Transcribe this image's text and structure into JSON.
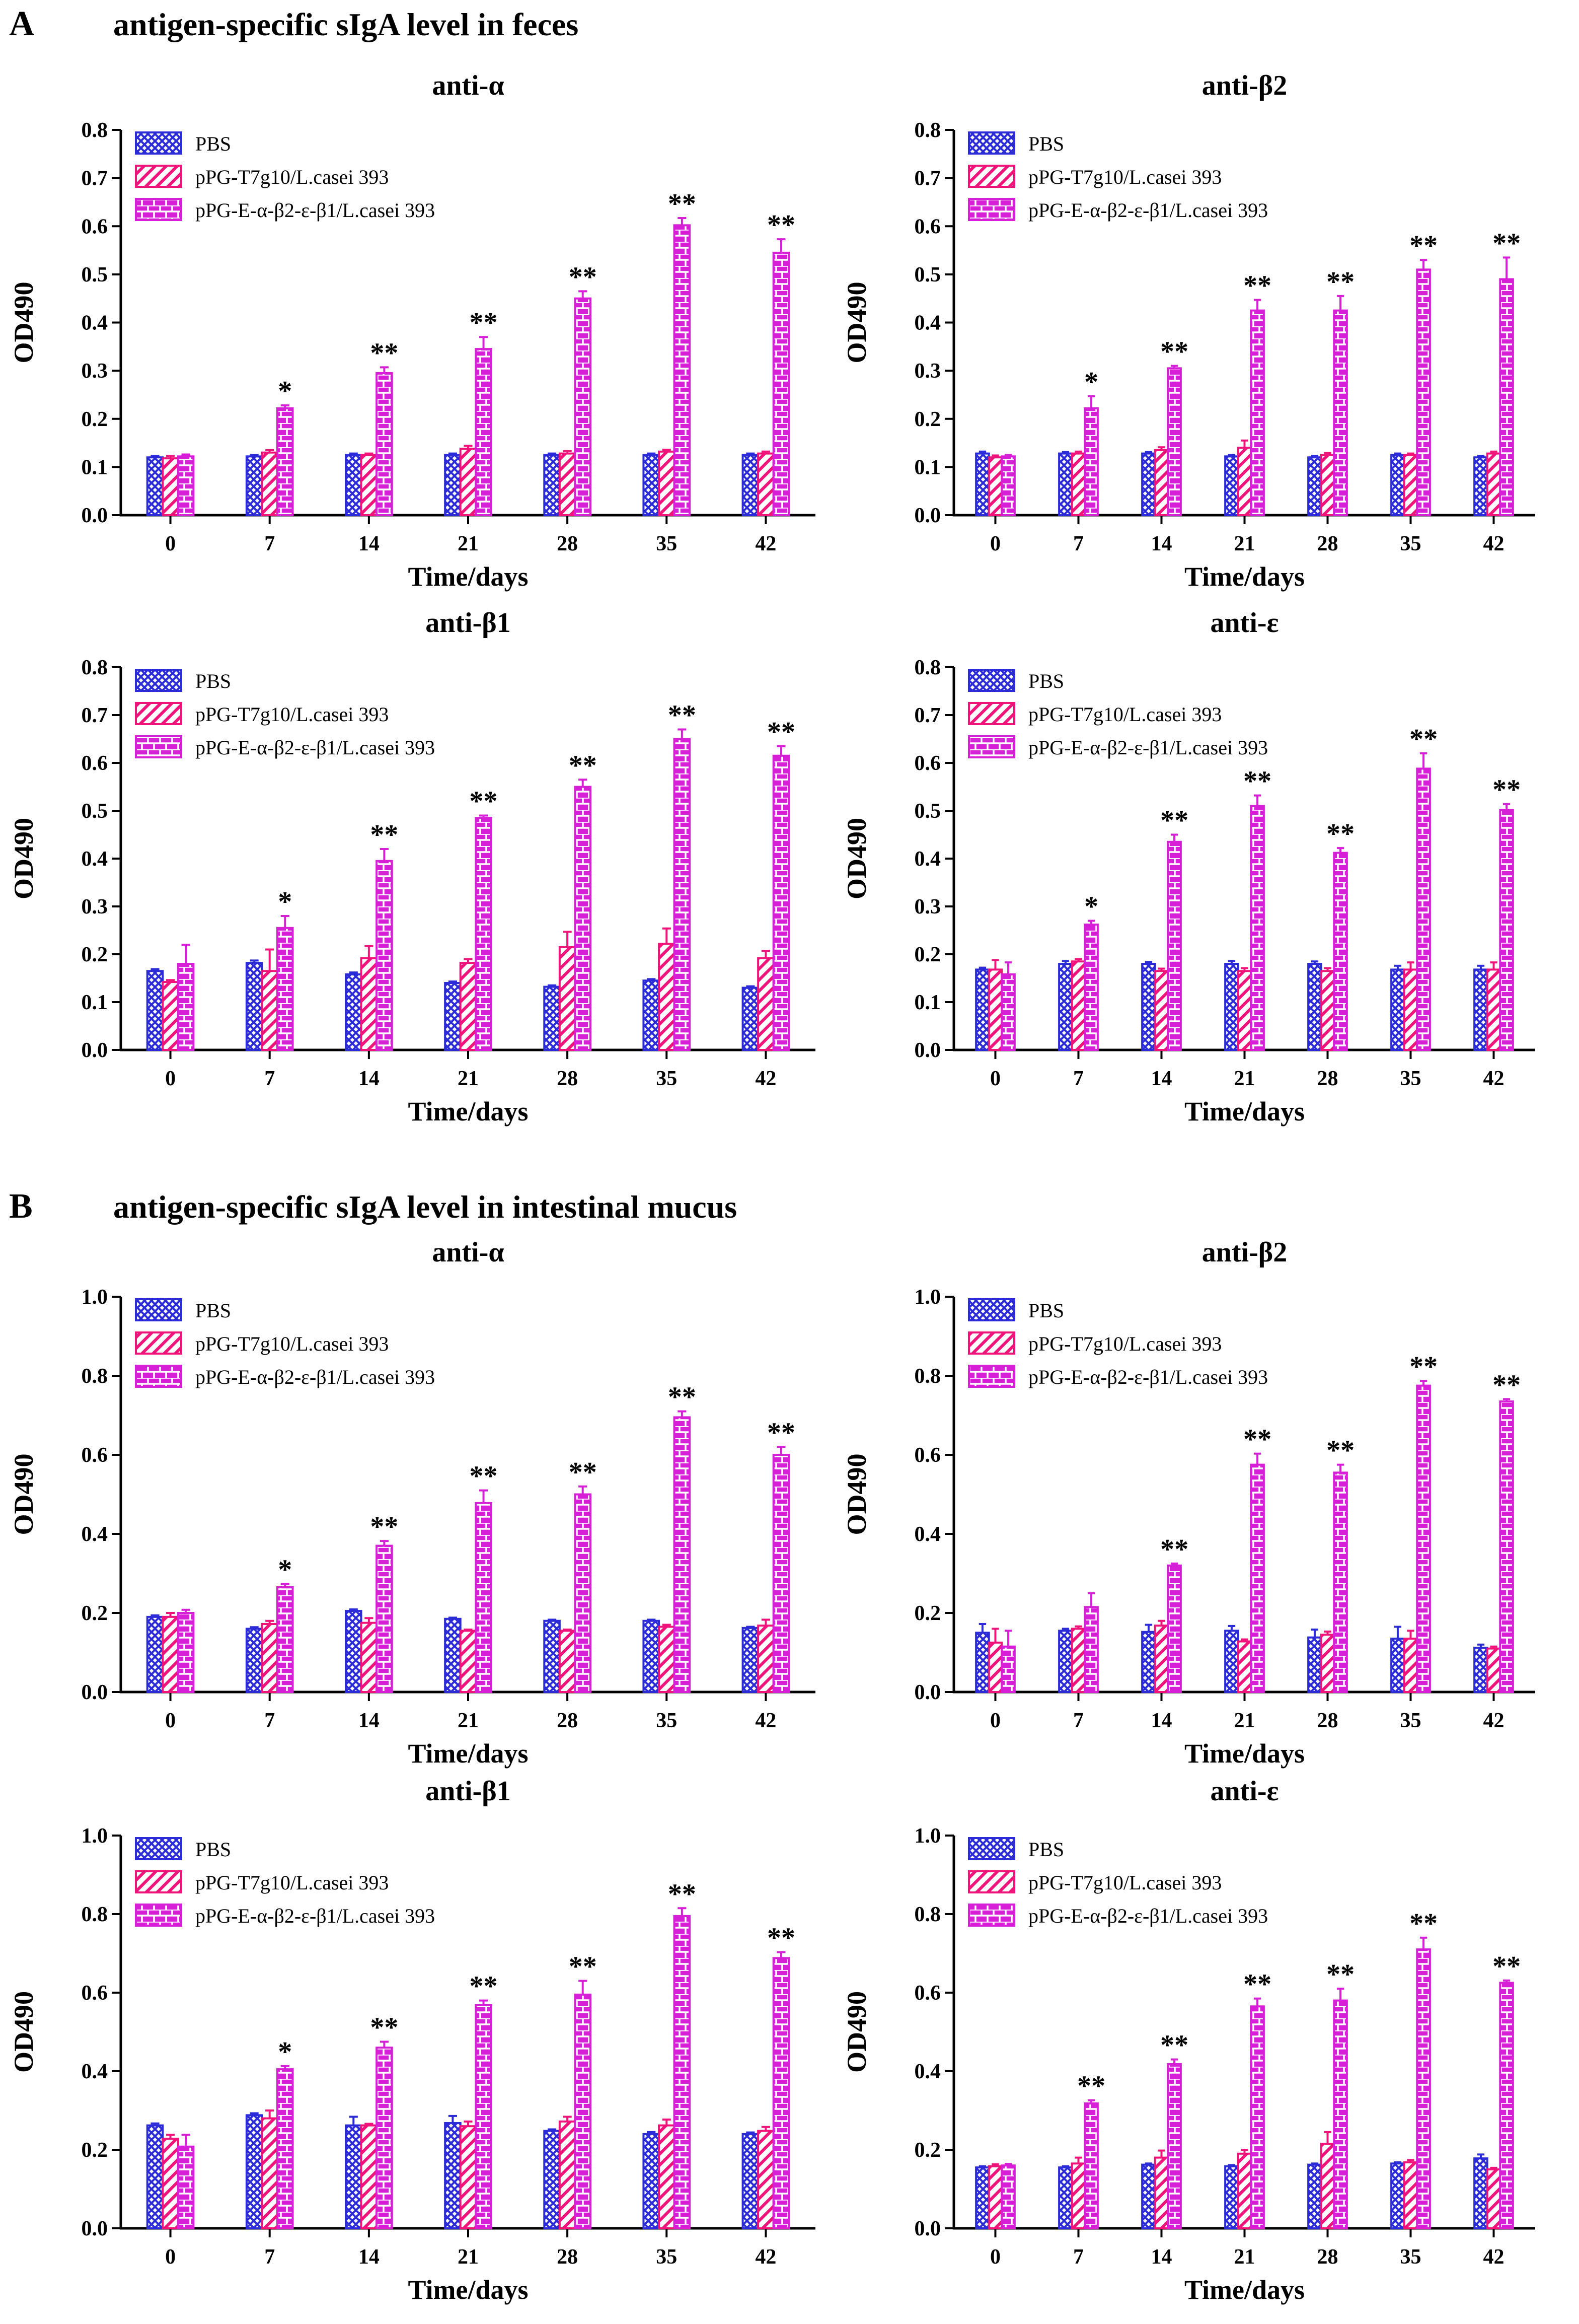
{
  "sections": [
    {
      "letter": "A",
      "title": "antigen-specific sIgA level in feces"
    },
    {
      "letter": "B",
      "title": "antigen-specific sIgA level in intestinal mucus"
    }
  ],
  "colors": {
    "pbs": "#2b2bd8",
    "vector": "#f0147a",
    "recombinant": "#d61fd6"
  },
  "chart_data": [
    {
      "type": "bar",
      "section": "A",
      "title": "anti-α",
      "xlabel": "Time/days",
      "ylabel": "OD490",
      "categories": [
        "0",
        "7",
        "14",
        "21",
        "28",
        "35",
        "42"
      ],
      "ylim": [
        0,
        0.8
      ],
      "yticks": [
        0,
        0.1,
        0.2,
        0.3,
        0.4,
        0.5,
        0.6,
        0.7,
        0.8
      ],
      "yticklabels": [
        "0.0",
        "0.1",
        "0.2",
        "0.3",
        "0.4",
        "0.5",
        "0.6",
        "0.7",
        "0.8"
      ],
      "legend": "top-left",
      "series": [
        {
          "name": "PBS",
          "values": [
            0.12,
            0.122,
            0.125,
            0.125,
            0.125,
            0.125,
            0.125
          ],
          "errors": [
            0.003,
            0.003,
            0.003,
            0.003,
            0.003,
            0.003,
            0.003
          ]
        },
        {
          "name": "pPG-T7g10/L.casei 393",
          "values": [
            0.118,
            0.13,
            0.125,
            0.138,
            0.128,
            0.132,
            0.128
          ],
          "errors": [
            0.005,
            0.005,
            0.003,
            0.006,
            0.005,
            0.004,
            0.004
          ]
        },
        {
          "name": "pPG-E-α-β2-ε-β1/L.casei 393",
          "values": [
            0.122,
            0.222,
            0.295,
            0.345,
            0.45,
            0.602,
            0.545
          ],
          "errors": [
            0.004,
            0.006,
            0.012,
            0.025,
            0.015,
            0.015,
            0.028
          ]
        }
      ],
      "significance": [
        "",
        "*",
        "**",
        "**",
        "**",
        "**",
        "**"
      ]
    },
    {
      "type": "bar",
      "section": "A",
      "title": "anti-β2",
      "xlabel": "Time/days",
      "ylabel": "OD490",
      "categories": [
        "0",
        "7",
        "14",
        "21",
        "28",
        "35",
        "42"
      ],
      "ylim": [
        0,
        0.8
      ],
      "yticks": [
        0,
        0.1,
        0.2,
        0.3,
        0.4,
        0.5,
        0.6,
        0.7,
        0.8
      ],
      "yticklabels": [
        "0.0",
        "0.1",
        "0.2",
        "0.3",
        "0.4",
        "0.5",
        "0.6",
        "0.7",
        "0.8"
      ],
      "legend": "top-left",
      "series": [
        {
          "name": "PBS",
          "values": [
            0.128,
            0.128,
            0.128,
            0.122,
            0.12,
            0.125,
            0.12
          ],
          "errors": [
            0.004,
            0.003,
            0.003,
            0.003,
            0.003,
            0.003,
            0.003
          ]
        },
        {
          "name": "pPG-T7g10/L.casei 393",
          "values": [
            0.12,
            0.128,
            0.135,
            0.14,
            0.125,
            0.125,
            0.128
          ],
          "errors": [
            0.004,
            0.004,
            0.006,
            0.015,
            0.004,
            0.003,
            0.004
          ]
        },
        {
          "name": "pPG-E-α-β2-ε-β1/L.casei 393",
          "values": [
            0.122,
            0.222,
            0.305,
            0.425,
            0.425,
            0.51,
            0.49
          ],
          "errors": [
            0.003,
            0.025,
            0.005,
            0.022,
            0.03,
            0.02,
            0.045
          ]
        }
      ],
      "significance": [
        "",
        "*",
        "**",
        "**",
        "**",
        "**",
        "**"
      ]
    },
    {
      "type": "bar",
      "section": "A",
      "title": "anti-β1",
      "xlabel": "Time/days",
      "ylabel": "OD490",
      "categories": [
        "0",
        "7",
        "14",
        "21",
        "28",
        "35",
        "42"
      ],
      "ylim": [
        0,
        0.8
      ],
      "yticks": [
        0,
        0.1,
        0.2,
        0.3,
        0.4,
        0.5,
        0.6,
        0.7,
        0.8
      ],
      "yticklabels": [
        "0.0",
        "0.1",
        "0.2",
        "0.3",
        "0.4",
        "0.5",
        "0.6",
        "0.7",
        "0.8"
      ],
      "legend": "top-left",
      "series": [
        {
          "name": "PBS",
          "values": [
            0.165,
            0.182,
            0.158,
            0.14,
            0.132,
            0.145,
            0.13
          ],
          "errors": [
            0.004,
            0.005,
            0.004,
            0.003,
            0.003,
            0.003,
            0.003
          ]
        },
        {
          "name": "pPG-T7g10/L.casei 393",
          "values": [
            0.142,
            0.165,
            0.192,
            0.182,
            0.215,
            0.222,
            0.192
          ],
          "errors": [
            0.004,
            0.045,
            0.025,
            0.008,
            0.032,
            0.032,
            0.015
          ]
        },
        {
          "name": "pPG-E-α-β2-ε-β1/L.casei 393",
          "values": [
            0.18,
            0.255,
            0.395,
            0.485,
            0.55,
            0.65,
            0.615
          ],
          "errors": [
            0.04,
            0.025,
            0.025,
            0.005,
            0.015,
            0.02,
            0.02
          ]
        }
      ],
      "significance": [
        "",
        "*",
        "**",
        "**",
        "**",
        "**",
        "**"
      ]
    },
    {
      "type": "bar",
      "section": "A",
      "title": "anti-ε",
      "xlabel": "Time/days",
      "ylabel": "OD490",
      "categories": [
        "0",
        "7",
        "14",
        "21",
        "28",
        "35",
        "42"
      ],
      "ylim": [
        0,
        0.8
      ],
      "yticks": [
        0,
        0.1,
        0.2,
        0.3,
        0.4,
        0.5,
        0.6,
        0.7,
        0.8
      ],
      "yticklabels": [
        "0.0",
        "0.1",
        "0.2",
        "0.3",
        "0.4",
        "0.5",
        "0.6",
        "0.7",
        "0.8"
      ],
      "legend": "top-left",
      "series": [
        {
          "name": "PBS",
          "values": [
            0.168,
            0.18,
            0.18,
            0.18,
            0.18,
            0.168,
            0.168
          ],
          "errors": [
            0.004,
            0.006,
            0.004,
            0.006,
            0.005,
            0.008,
            0.008
          ]
        },
        {
          "name": "pPG-T7g10/L.casei 393",
          "values": [
            0.168,
            0.185,
            0.165,
            0.165,
            0.165,
            0.168,
            0.168
          ],
          "errors": [
            0.02,
            0.005,
            0.005,
            0.006,
            0.006,
            0.015,
            0.015
          ]
        },
        {
          "name": "pPG-E-α-β2-ε-β1/L.casei 393",
          "values": [
            0.158,
            0.262,
            0.435,
            0.51,
            0.412,
            0.588,
            0.502
          ],
          "errors": [
            0.025,
            0.008,
            0.015,
            0.022,
            0.01,
            0.032,
            0.012
          ]
        }
      ],
      "significance": [
        "",
        "*",
        "**",
        "**",
        "**",
        "**",
        "**"
      ]
    },
    {
      "type": "bar",
      "section": "B",
      "title": "anti-α",
      "xlabel": "Time/days",
      "ylabel": "OD490",
      "categories": [
        "0",
        "7",
        "14",
        "21",
        "28",
        "35",
        "42"
      ],
      "ylim": [
        0,
        1.0
      ],
      "yticks": [
        0,
        0.2,
        0.4,
        0.6,
        0.8,
        1.0
      ],
      "yticklabels": [
        "0.0",
        "0.2",
        "0.4",
        "0.6",
        "0.8",
        "1.0"
      ],
      "legend": "top-left",
      "series": [
        {
          "name": "PBS",
          "values": [
            0.19,
            0.16,
            0.205,
            0.185,
            0.18,
            0.18,
            0.162
          ],
          "errors": [
            0.004,
            0.004,
            0.004,
            0.003,
            0.003,
            0.003,
            0.003
          ]
        },
        {
          "name": "pPG-T7g10/L.casei 393",
          "values": [
            0.19,
            0.172,
            0.175,
            0.155,
            0.155,
            0.165,
            0.168
          ],
          "errors": [
            0.01,
            0.008,
            0.012,
            0.003,
            0.003,
            0.005,
            0.015
          ]
        },
        {
          "name": "pPG-E-α-β2-ε-β1/L.casei 393",
          "values": [
            0.2,
            0.265,
            0.37,
            0.478,
            0.5,
            0.695,
            0.6
          ],
          "errors": [
            0.008,
            0.008,
            0.012,
            0.032,
            0.02,
            0.015,
            0.02
          ]
        }
      ],
      "significance": [
        "",
        "*",
        "**",
        "**",
        "**",
        "**",
        "**"
      ]
    },
    {
      "type": "bar",
      "section": "B",
      "title": "anti-β2",
      "xlabel": "Time/days",
      "ylabel": "OD490",
      "categories": [
        "0",
        "7",
        "14",
        "21",
        "28",
        "35",
        "42"
      ],
      "ylim": [
        0,
        1.0
      ],
      "yticks": [
        0,
        0.2,
        0.4,
        0.6,
        0.8,
        1.0
      ],
      "yticklabels": [
        "0.0",
        "0.2",
        "0.4",
        "0.6",
        "0.8",
        "1.0"
      ],
      "legend": "top-left",
      "series": [
        {
          "name": "PBS",
          "values": [
            0.15,
            0.155,
            0.152,
            0.155,
            0.138,
            0.135,
            0.112
          ],
          "errors": [
            0.022,
            0.005,
            0.018,
            0.012,
            0.02,
            0.03,
            0.008
          ]
        },
        {
          "name": "pPG-T7g10/L.casei 393",
          "values": [
            0.125,
            0.16,
            0.168,
            0.128,
            0.145,
            0.135,
            0.11
          ],
          "errors": [
            0.035,
            0.006,
            0.012,
            0.005,
            0.008,
            0.02,
            0.005
          ]
        },
        {
          "name": "pPG-E-α-β2-ε-β1/L.casei 393",
          "values": [
            0.115,
            0.215,
            0.32,
            0.575,
            0.555,
            0.775,
            0.735
          ],
          "errors": [
            0.04,
            0.035,
            0.005,
            0.028,
            0.02,
            0.012,
            0.006
          ]
        }
      ],
      "significance": [
        "",
        "",
        "**",
        "**",
        "**",
        "**",
        "**"
      ]
    },
    {
      "type": "bar",
      "section": "B",
      "title": "anti-β1",
      "xlabel": "Time/days",
      "ylabel": "OD490",
      "categories": [
        "0",
        "7",
        "14",
        "21",
        "28",
        "35",
        "42"
      ],
      "ylim": [
        0,
        1.0
      ],
      "yticks": [
        0,
        0.2,
        0.4,
        0.6,
        0.8,
        1.0
      ],
      "yticklabels": [
        "0.0",
        "0.2",
        "0.4",
        "0.6",
        "0.8",
        "1.0"
      ],
      "legend": "top-left",
      "series": [
        {
          "name": "PBS",
          "values": [
            0.262,
            0.288,
            0.262,
            0.268,
            0.248,
            0.24,
            0.24
          ],
          "errors": [
            0.005,
            0.005,
            0.022,
            0.018,
            0.004,
            0.005,
            0.004
          ]
        },
        {
          "name": "pPG-T7g10/L.casei 393",
          "values": [
            0.228,
            0.28,
            0.262,
            0.26,
            0.272,
            0.262,
            0.248
          ],
          "errors": [
            0.01,
            0.02,
            0.004,
            0.012,
            0.012,
            0.015,
            0.01
          ]
        },
        {
          "name": "pPG-E-α-β2-ε-β1/L.casei 393",
          "values": [
            0.208,
            0.405,
            0.46,
            0.568,
            0.595,
            0.795,
            0.688
          ],
          "errors": [
            0.03,
            0.008,
            0.015,
            0.012,
            0.035,
            0.02,
            0.015
          ]
        }
      ],
      "significance": [
        "",
        "*",
        "**",
        "**",
        "**",
        "**",
        "**"
      ]
    },
    {
      "type": "bar",
      "section": "B",
      "title": "anti-ε",
      "xlabel": "Time/days",
      "ylabel": "OD490",
      "categories": [
        "0",
        "7",
        "14",
        "21",
        "28",
        "35",
        "42"
      ],
      "ylim": [
        0,
        1.0
      ],
      "yticks": [
        0,
        0.2,
        0.4,
        0.6,
        0.8,
        1.0
      ],
      "yticklabels": [
        "0.0",
        "0.2",
        "0.4",
        "0.6",
        "0.8",
        "1.0"
      ],
      "legend": "top-left",
      "series": [
        {
          "name": "PBS",
          "values": [
            0.155,
            0.155,
            0.162,
            0.158,
            0.162,
            0.165,
            0.178
          ],
          "errors": [
            0.003,
            0.003,
            0.003,
            0.003,
            0.003,
            0.003,
            0.01
          ]
        },
        {
          "name": "pPG-T7g10/L.casei 393",
          "values": [
            0.158,
            0.165,
            0.18,
            0.19,
            0.215,
            0.168,
            0.15
          ],
          "errors": [
            0.005,
            0.015,
            0.018,
            0.01,
            0.03,
            0.006,
            0.004
          ]
        },
        {
          "name": "pPG-E-α-β2-ε-β1/L.casei 393",
          "values": [
            0.16,
            0.318,
            0.418,
            0.565,
            0.58,
            0.71,
            0.625
          ],
          "errors": [
            0.004,
            0.008,
            0.012,
            0.02,
            0.03,
            0.03,
            0.006
          ]
        }
      ],
      "significance": [
        "",
        "**",
        "**",
        "**",
        "**",
        "**",
        "**"
      ]
    }
  ]
}
